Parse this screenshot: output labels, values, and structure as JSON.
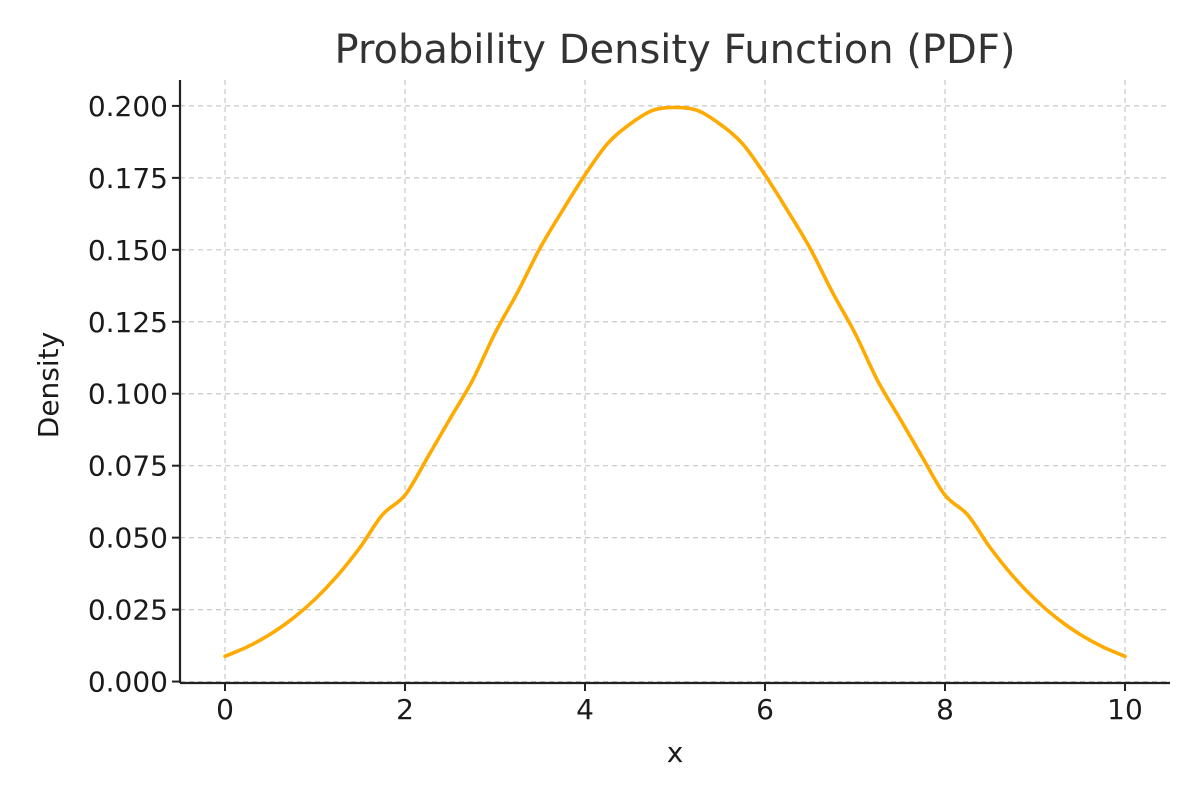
{
  "chart_data": {
    "type": "line",
    "title": "Probability Density Function (PDF)",
    "xlabel": "x",
    "ylabel": "Density",
    "xlim": [
      -0.5,
      10.5
    ],
    "ylim": [
      -0.0005,
      0.209
    ],
    "x_ticks": [
      0,
      2,
      4,
      6,
      8,
      10
    ],
    "x_tick_labels": [
      "0",
      "2",
      "4",
      "6",
      "8",
      "10"
    ],
    "y_ticks": [
      0.0,
      0.025,
      0.05,
      0.075,
      0.1,
      0.125,
      0.15,
      0.175,
      0.2
    ],
    "y_tick_labels": [
      "0.000",
      "0.025",
      "0.050",
      "0.075",
      "0.100",
      "0.125",
      "0.150",
      "0.175",
      "0.200"
    ],
    "grid": true,
    "legend": "none",
    "series": [
      {
        "color": "#FFAA00",
        "x": [
          0,
          0.25,
          0.5,
          0.75,
          1,
          1.25,
          1.5,
          1.75,
          2,
          2.25,
          2.5,
          2.75,
          3,
          3.25,
          3.5,
          3.75,
          4,
          4.25,
          4.5,
          4.75,
          5,
          5.25,
          5.5,
          5.75,
          6,
          6.25,
          6.5,
          6.75,
          7,
          7.25,
          7.5,
          7.75,
          8,
          8.25,
          8.5,
          8.75,
          9,
          9.25,
          9.5,
          9.75,
          10
        ],
        "y": [
          0.00877,
          0.01208,
          0.0164,
          0.02185,
          0.0286,
          0.03682,
          0.04659,
          0.05798,
          0.06476,
          0.07783,
          0.09132,
          0.10463,
          0.12103,
          0.13519,
          0.15058,
          0.16364,
          0.17603,
          0.18687,
          0.19367,
          0.19843,
          0.19947,
          0.19843,
          0.19367,
          0.18687,
          0.17603,
          0.16364,
          0.15058,
          0.13519,
          0.12103,
          0.10463,
          0.09132,
          0.07783,
          0.06476,
          0.05798,
          0.04659,
          0.03682,
          0.0286,
          0.02185,
          0.0164,
          0.01208,
          0.00877
        ]
      }
    ]
  }
}
